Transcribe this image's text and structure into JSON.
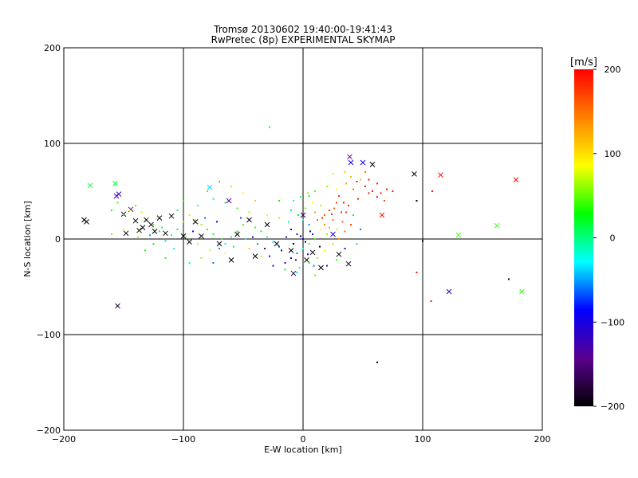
{
  "chart_data": {
    "type": "scatter",
    "title": "Tromsø 20130602 19:40:00-19:41:43",
    "subtitle": "RwPretec (8p) EXPERIMENTAL SKYMAP",
    "xlabel": "E-W location [km]",
    "ylabel": "N-S location [km]",
    "xlim": [
      -200,
      200
    ],
    "ylim": [
      -200,
      200
    ],
    "x_ticks": [
      -200,
      -100,
      0,
      100,
      200
    ],
    "y_ticks": [
      -200,
      -100,
      0,
      100,
      200
    ],
    "grid": true,
    "colorbar": {
      "label": "[m/s]",
      "min": -200,
      "max": 200,
      "ticks": [
        -200,
        -100,
        0,
        100,
        200
      ],
      "colormap": [
        "#000000",
        "#5a0090",
        "#0000ff",
        "#00ffff",
        "#00ff00",
        "#ffff00",
        "#ff8000",
        "#ff0000"
      ]
    },
    "series": [
      {
        "marker": "cross",
        "points": [
          [
            -183,
            20,
            -200
          ],
          [
            -181,
            18,
            -200
          ],
          [
            -178,
            56,
            20
          ],
          [
            -157,
            58,
            20
          ],
          [
            -156,
            45,
            -120
          ],
          [
            -154,
            47,
            -120
          ],
          [
            -150,
            26,
            -200
          ],
          [
            -148,
            6,
            -200
          ],
          [
            -144,
            31,
            -140
          ],
          [
            -140,
            19,
            -200
          ],
          [
            -137,
            9,
            -200
          ],
          [
            -134,
            12,
            -200
          ],
          [
            -131,
            20,
            -200
          ],
          [
            -127,
            15,
            -180
          ],
          [
            -124,
            8,
            -200
          ],
          [
            -120,
            22,
            -200
          ],
          [
            -115,
            6,
            -200
          ],
          [
            -110,
            24,
            -200
          ],
          [
            -100,
            3,
            -200
          ],
          [
            -95,
            -3,
            -200
          ],
          [
            -90,
            18,
            -200
          ],
          [
            -85,
            3,
            -200
          ],
          [
            -78,
            54,
            -40
          ],
          [
            -70,
            -5,
            -200
          ],
          [
            -62,
            40,
            -140
          ],
          [
            -60,
            -22,
            -200
          ],
          [
            -55,
            5,
            -200
          ],
          [
            -45,
            20,
            -200
          ],
          [
            -40,
            -18,
            -200
          ],
          [
            -30,
            15,
            -200
          ],
          [
            -22,
            -5,
            -200
          ],
          [
            -10,
            -12,
            -200
          ],
          [
            -8,
            -36,
            -180
          ],
          [
            0,
            25,
            -160
          ],
          [
            3,
            -22,
            -200
          ],
          [
            8,
            -14,
            -200
          ],
          [
            15,
            -30,
            -200
          ],
          [
            25,
            5,
            -100
          ],
          [
            30,
            -16,
            -200
          ],
          [
            38,
            -26,
            -200
          ],
          [
            39,
            86,
            -140
          ],
          [
            40,
            80,
            -100
          ],
          [
            50,
            80,
            -100
          ],
          [
            58,
            78,
            -200
          ],
          [
            66,
            25,
            190
          ],
          [
            93,
            68,
            -200
          ],
          [
            115,
            67,
            190
          ],
          [
            122,
            -55,
            -120
          ],
          [
            130,
            4,
            40
          ],
          [
            162,
            14,
            40
          ],
          [
            178,
            62,
            190
          ],
          [
            183,
            -55,
            40
          ],
          [
            -155,
            -70,
            -180
          ]
        ]
      },
      {
        "marker": "dot",
        "points": [
          [
            -28,
            117,
            30
          ],
          [
            45,
            60,
            190
          ],
          [
            52,
            55,
            190
          ],
          [
            58,
            50,
            190
          ],
          [
            65,
            48,
            190
          ],
          [
            70,
            52,
            190
          ],
          [
            75,
            50,
            190
          ],
          [
            55,
            62,
            190
          ],
          [
            62,
            58,
            190
          ],
          [
            48,
            62,
            120
          ],
          [
            40,
            65,
            120
          ],
          [
            35,
            70,
            110
          ],
          [
            25,
            68,
            100
          ],
          [
            20,
            55,
            60
          ],
          [
            10,
            50,
            40
          ],
          [
            5,
            45,
            20
          ],
          [
            30,
            45,
            180
          ],
          [
            28,
            38,
            170
          ],
          [
            22,
            30,
            170
          ],
          [
            18,
            25,
            160
          ],
          [
            12,
            20,
            150
          ],
          [
            25,
            20,
            150
          ],
          [
            32,
            28,
            180
          ],
          [
            38,
            35,
            180
          ],
          [
            42,
            52,
            150
          ],
          [
            15,
            10,
            80
          ],
          [
            20,
            5,
            60
          ],
          [
            10,
            0,
            40
          ],
          [
            5,
            -5,
            0
          ],
          [
            0,
            -10,
            -30
          ],
          [
            -5,
            -15,
            -60
          ],
          [
            -10,
            -20,
            -90
          ],
          [
            -15,
            -25,
            -120
          ],
          [
            -20,
            -8,
            -70
          ],
          [
            -25,
            -3,
            -40
          ],
          [
            -30,
            2,
            -10
          ],
          [
            -35,
            8,
            20
          ],
          [
            -40,
            12,
            40
          ],
          [
            -50,
            15,
            50
          ],
          [
            -55,
            8,
            30
          ],
          [
            -60,
            2,
            0
          ],
          [
            -65,
            -5,
            -30
          ],
          [
            -70,
            -10,
            -50
          ],
          [
            -75,
            5,
            20
          ],
          [
            -80,
            10,
            40
          ],
          [
            -85,
            15,
            60
          ],
          [
            -90,
            20,
            80
          ],
          [
            -95,
            25,
            100
          ],
          [
            -100,
            18,
            60
          ],
          [
            -105,
            10,
            20
          ],
          [
            -110,
            4,
            -10
          ],
          [
            -115,
            -2,
            -40
          ],
          [
            -120,
            8,
            20
          ],
          [
            -125,
            15,
            50
          ],
          [
            -130,
            22,
            80
          ],
          [
            -135,
            28,
            100
          ],
          [
            -140,
            35,
            120
          ],
          [
            -145,
            30,
            90
          ],
          [
            -150,
            25,
            60
          ],
          [
            -155,
            38,
            40
          ],
          [
            -160,
            30,
            20
          ],
          [
            -70,
            60,
            30
          ],
          [
            -80,
            50,
            50
          ],
          [
            -60,
            55,
            70
          ],
          [
            -50,
            48,
            90
          ],
          [
            -40,
            40,
            110
          ],
          [
            -20,
            40,
            30
          ],
          [
            -10,
            30,
            10
          ],
          [
            0,
            20,
            -20
          ],
          [
            5,
            15,
            -50
          ],
          [
            8,
            5,
            -80
          ],
          [
            0,
            0,
            -100
          ],
          [
            -5,
            5,
            -130
          ],
          [
            -10,
            10,
            -160
          ],
          [
            -3,
            -30,
            -20
          ],
          [
            5,
            -25,
            30
          ],
          [
            12,
            -20,
            60
          ],
          [
            18,
            -12,
            90
          ],
          [
            25,
            -5,
            110
          ],
          [
            30,
            0,
            130
          ],
          [
            35,
            8,
            150
          ],
          [
            40,
            15,
            170
          ],
          [
            -2,
            3,
            -200
          ],
          [
            2,
            -3,
            -200
          ],
          [
            6,
            8,
            -180
          ],
          [
            -8,
            -5,
            -200
          ],
          [
            14,
            -8,
            -200
          ],
          [
            100,
            -2,
            -200
          ],
          [
            95,
            40,
            -200
          ],
          [
            95,
            -35,
            190
          ],
          [
            107,
            -65,
            190
          ],
          [
            108,
            50,
            190
          ],
          [
            172,
            -42,
            -200
          ],
          [
            62,
            -129,
            -200
          ],
          [
            -100,
            40,
            30
          ],
          [
            -115,
            -20,
            40
          ],
          [
            -95,
            -25,
            -20
          ],
          [
            -85,
            -20,
            60
          ],
          [
            -75,
            -25,
            -60
          ],
          [
            -65,
            -15,
            90
          ],
          [
            -45,
            -10,
            110
          ],
          [
            -35,
            -18,
            70
          ],
          [
            -25,
            -28,
            -100
          ],
          [
            -15,
            -32,
            20
          ],
          [
            -5,
            -35,
            -40
          ],
          [
            10,
            -38,
            50
          ],
          [
            20,
            -28,
            -80
          ],
          [
            28,
            -22,
            40
          ],
          [
            35,
            -10,
            -120
          ],
          [
            45,
            -5,
            30
          ],
          [
            48,
            10,
            -60
          ],
          [
            42,
            25,
            20
          ],
          [
            -20,
            22,
            110
          ],
          [
            -30,
            25,
            90
          ],
          [
            -45,
            28,
            60
          ],
          [
            -55,
            32,
            40
          ],
          [
            -65,
            38,
            20
          ],
          [
            -75,
            42,
            0
          ],
          [
            -88,
            35,
            -20
          ],
          [
            -105,
            30,
            10
          ],
          [
            -125,
            -5,
            30
          ],
          [
            -138,
            2,
            60
          ],
          [
            -150,
            10,
            80
          ],
          [
            -160,
            5,
            50
          ],
          [
            15,
            35,
            110
          ],
          [
            8,
            38,
            80
          ],
          [
            2,
            32,
            50
          ],
          [
            -4,
            25,
            20
          ],
          [
            -12,
            18,
            -10
          ],
          [
            18,
            15,
            140
          ],
          [
            22,
            12,
            120
          ],
          [
            28,
            10,
            100
          ],
          [
            33,
            18,
            160
          ],
          [
            36,
            28,
            175
          ],
          [
            26,
            32,
            155
          ],
          [
            10,
            28,
            130
          ],
          [
            -14,
            2,
            -140
          ],
          [
            -18,
            -12,
            -170
          ],
          [
            -6,
            -22,
            -150
          ],
          [
            4,
            -16,
            -110
          ],
          [
            9,
            -28,
            -60
          ],
          [
            -28,
            -18,
            -90
          ],
          [
            -38,
            -5,
            -50
          ],
          [
            -48,
            0,
            -20
          ],
          [
            -58,
            -8,
            10
          ],
          [
            -68,
            0,
            40
          ],
          [
            -78,
            -12,
            70
          ],
          [
            -88,
            -5,
            100
          ],
          [
            -98,
            2,
            50
          ],
          [
            -108,
            -10,
            -20
          ],
          [
            -118,
            12,
            5
          ],
          [
            -128,
            4,
            -50
          ],
          [
            -132,
            -12,
            30
          ],
          [
            -92,
            8,
            -100
          ],
          [
            -82,
            22,
            -60
          ],
          [
            -72,
            18,
            -90
          ],
          [
            -52,
            22,
            -70
          ],
          [
            -42,
            2,
            -120
          ],
          [
            -32,
            -10,
            -150
          ],
          [
            16,
            22,
            180
          ],
          [
            24,
            26,
            190
          ],
          [
            34,
            38,
            190
          ],
          [
            46,
            42,
            190
          ],
          [
            55,
            48,
            190
          ],
          [
            62,
            44,
            190
          ],
          [
            68,
            40,
            170
          ],
          [
            -8,
            40,
            -30
          ],
          [
            -2,
            44,
            10
          ],
          [
            4,
            48,
            60
          ],
          [
            28,
            52,
            90
          ],
          [
            36,
            58,
            130
          ],
          [
            52,
            70,
            150
          ]
        ]
      }
    ]
  }
}
